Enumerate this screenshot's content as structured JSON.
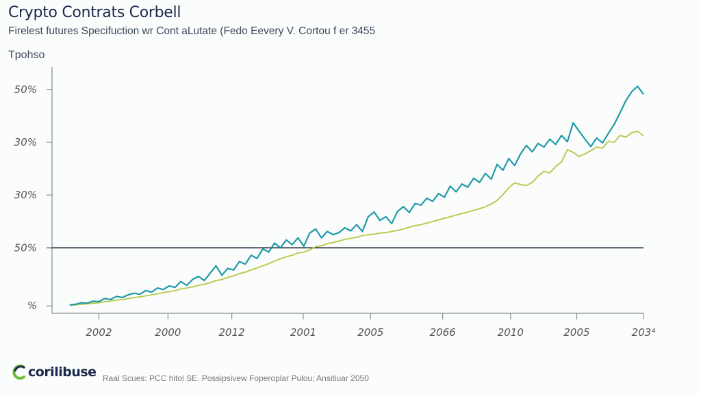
{
  "header": {
    "title": "Crypto Contrats Corbell",
    "subtitle": "Firelest futures Specifuction wr Cont aLutate (Fedo Eevery V. Cortou f er 3455",
    "y_axis_title": "Tpohso"
  },
  "footer": {
    "logo_text": "corilibuse",
    "source": "Raal Scues: PCC hitol SE. Possipsivew Foperoplar Pulou; Ansitiuar 2050"
  },
  "colors": {
    "series_teal": "#1f9aa8",
    "series_lime": "#b8c94a",
    "reference_line": "#1b2438",
    "axis": "#8a8f96",
    "logo_green": "#6abf3a",
    "logo_navy": "#1b2a4a"
  },
  "chart_data": {
    "type": "line",
    "title": "Crypto Contrats Corbell",
    "subtitle": "Firelest futures Specifuction wr Cont aLutate (Fedo Eevery V. Cortou f er 3455",
    "ylabel": "Tpohso",
    "xlabel": "",
    "y_ticks": [
      {
        "value": 0,
        "label": "%"
      },
      {
        "value": 11,
        "label": "50%"
      },
      {
        "value": 21,
        "label": "30%"
      },
      {
        "value": 31,
        "label": "30%"
      },
      {
        "value": 41,
        "label": "50%"
      }
    ],
    "ylim": [
      -1.4,
      45
    ],
    "x_ticks": [
      {
        "value": 5,
        "label": "2002"
      },
      {
        "value": 16.8,
        "label": "2000"
      },
      {
        "value": 27.7,
        "label": "2012"
      },
      {
        "value": 39.9,
        "label": "2001"
      },
      {
        "value": 51.4,
        "label": "2005"
      },
      {
        "value": 63.7,
        "label": "2066"
      },
      {
        "value": 75.3,
        "label": "2010"
      },
      {
        "value": 86.6,
        "label": "2005"
      },
      {
        "value": 98,
        "label": "203⁴"
      }
    ],
    "xlim": [
      -3,
      98
    ],
    "reference_line": {
      "y": 11
    },
    "grid": false,
    "legend": "none",
    "series": [
      {
        "name": "teal",
        "x": [
          0,
          1,
          2,
          3,
          4,
          5,
          6,
          7,
          8,
          9,
          10,
          11,
          12,
          13,
          14,
          15,
          16,
          17,
          18,
          19,
          20,
          21,
          22,
          23,
          24,
          25,
          26,
          27,
          28,
          29,
          30,
          31,
          32,
          33,
          34,
          35,
          36,
          37,
          38,
          39,
          40,
          41,
          42,
          43,
          44,
          45,
          46,
          47,
          48,
          49,
          50,
          51,
          52,
          53,
          54,
          55,
          56,
          57,
          58,
          59,
          60,
          61,
          62,
          63,
          64,
          65,
          66,
          67,
          68,
          69,
          70,
          71,
          72,
          73,
          74,
          75,
          76,
          77,
          78,
          79,
          80,
          81,
          82,
          83,
          84,
          85,
          86,
          87,
          88,
          89,
          90,
          91,
          92,
          93,
          94,
          95,
          96,
          97,
          98
        ],
        "values": [
          0.2,
          0.3,
          0.6,
          0.5,
          0.9,
          0.8,
          1.4,
          1.2,
          1.8,
          1.6,
          2.1,
          2.4,
          2.2,
          2.9,
          2.6,
          3.4,
          3.1,
          3.8,
          3.5,
          4.6,
          3.9,
          5.0,
          5.6,
          4.8,
          6.2,
          7.6,
          5.8,
          7.1,
          6.8,
          8.4,
          7.9,
          9.6,
          9.0,
          10.8,
          10.2,
          11.9,
          11.0,
          12.5,
          11.6,
          12.9,
          11.3,
          13.8,
          14.6,
          12.9,
          14.1,
          13.5,
          13.9,
          14.8,
          14.2,
          15.4,
          14.1,
          16.9,
          17.8,
          16.2,
          16.9,
          15.6,
          17.9,
          18.8,
          17.7,
          19.4,
          19.1,
          20.4,
          19.8,
          21.3,
          20.6,
          22.7,
          21.6,
          23.1,
          22.5,
          24.2,
          23.4,
          25.1,
          24.0,
          26.8,
          25.7,
          27.9,
          26.6,
          28.8,
          30.4,
          29.2,
          30.8,
          30.1,
          31.6,
          30.6,
          32.3,
          31.1,
          34.7,
          33.1,
          31.6,
          30.2,
          31.8,
          30.9,
          32.7,
          34.4,
          36.6,
          38.9,
          40.6,
          41.6,
          40.1
        ]
      },
      {
        "name": "lime",
        "x": [
          0,
          1,
          2,
          3,
          4,
          5,
          6,
          7,
          8,
          9,
          10,
          11,
          12,
          13,
          14,
          15,
          16,
          17,
          18,
          19,
          20,
          21,
          22,
          23,
          24,
          25,
          26,
          27,
          28,
          29,
          30,
          31,
          32,
          33,
          34,
          35,
          36,
          37,
          38,
          39,
          40,
          41,
          42,
          43,
          44,
          45,
          46,
          47,
          48,
          49,
          50,
          51,
          52,
          53,
          54,
          55,
          56,
          57,
          58,
          59,
          60,
          61,
          62,
          63,
          64,
          65,
          66,
          67,
          68,
          69,
          70,
          71,
          72,
          73,
          74,
          75,
          76,
          77,
          78,
          79,
          80,
          81,
          82,
          83,
          84,
          85,
          86,
          87,
          88,
          89,
          90,
          91,
          92,
          93,
          94,
          95,
          96,
          97,
          98
        ],
        "values": [
          0.1,
          0.2,
          0.3,
          0.4,
          0.5,
          0.6,
          0.8,
          0.9,
          1.1,
          1.2,
          1.4,
          1.6,
          1.7,
          1.9,
          2.1,
          2.3,
          2.5,
          2.7,
          2.9,
          3.2,
          3.4,
          3.6,
          3.9,
          4.1,
          4.4,
          4.8,
          5.0,
          5.4,
          5.7,
          6.1,
          6.4,
          6.8,
          7.2,
          7.6,
          8.0,
          8.5,
          8.9,
          9.3,
          9.6,
          10.0,
          10.2,
          10.6,
          11.2,
          11.4,
          11.8,
          12.0,
          12.3,
          12.6,
          12.8,
          13.0,
          13.3,
          13.5,
          13.6,
          13.8,
          13.9,
          14.1,
          14.3,
          14.6,
          14.9,
          15.2,
          15.4,
          15.7,
          16.0,
          16.3,
          16.6,
          16.9,
          17.2,
          17.5,
          17.8,
          18.1,
          18.4,
          18.8,
          19.3,
          20.0,
          21.1,
          22.4,
          23.3,
          23.0,
          22.8,
          23.4,
          24.6,
          25.5,
          25.2,
          26.4,
          27.3,
          29.6,
          29.1,
          28.3,
          28.8,
          29.4,
          30.1,
          29.9,
          31.2,
          31.0,
          32.3,
          32.0,
          32.8,
          33.1,
          32.2
        ]
      }
    ]
  }
}
